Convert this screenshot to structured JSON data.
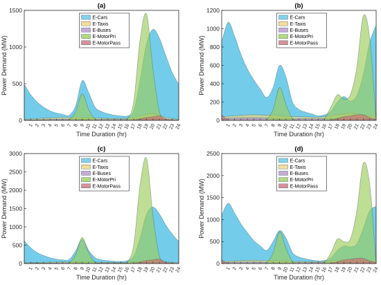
{
  "colors": {
    "E-Cars": "#5bc4e6",
    "E-Taxis": "#f0d27a",
    "E-Buses": "#b58ec8",
    "E-MotorPri": "#9bcc5a",
    "E-MotorPass": "#c96b78"
  },
  "chart_data": [
    {
      "type": "area",
      "title": "(a)",
      "xlabel": "Time Duration (hr)",
      "ylabel": "Power Demand (MW)",
      "ylim": [
        0,
        1500
      ],
      "yticks": [
        0,
        500,
        1000,
        1500
      ],
      "xlim": [
        0,
        24
      ],
      "x": [
        0,
        1,
        2,
        3,
        4,
        5,
        6,
        7,
        8,
        9,
        10,
        11,
        12,
        13,
        14,
        15,
        16,
        17,
        18,
        19,
        20,
        21,
        22,
        23,
        24
      ],
      "xticks": [
        "1",
        "2",
        "3",
        "4",
        "5",
        "6",
        "7",
        "8",
        "9",
        "10",
        "11",
        "12",
        "13",
        "14",
        "15",
        "16",
        "17",
        "18",
        "19",
        "20",
        "21",
        "22",
        "23",
        "24"
      ],
      "legend": "top-center",
      "series": [
        {
          "name": "E-Cars",
          "values": [
            490,
            350,
            250,
            180,
            130,
            100,
            80,
            70,
            200,
            540,
            380,
            180,
            120,
            90,
            70,
            60,
            60,
            130,
            550,
            1050,
            1240,
            1120,
            880,
            650,
            490
          ]
        },
        {
          "name": "E-Taxis",
          "values": [
            15,
            20,
            25,
            30,
            35,
            38,
            40,
            40,
            40,
            38,
            35,
            33,
            30,
            28,
            26,
            25,
            30,
            40,
            60,
            80,
            90,
            70,
            40,
            25,
            15
          ]
        },
        {
          "name": "E-Buses",
          "values": [
            5,
            6,
            8,
            10,
            12,
            14,
            16,
            18,
            18,
            16,
            14,
            12,
            12,
            12,
            12,
            12,
            14,
            18,
            24,
            30,
            28,
            20,
            12,
            8,
            5
          ]
        },
        {
          "name": "E-MotorPri",
          "values": [
            0,
            0,
            0,
            0,
            0,
            0,
            0,
            10,
            120,
            360,
            150,
            20,
            0,
            0,
            0,
            0,
            15,
            250,
            1100,
            1450,
            700,
            120,
            0,
            0,
            0
          ]
        },
        {
          "name": "E-MotorPass",
          "values": [
            0,
            0,
            0,
            0,
            0,
            0,
            0,
            0,
            2,
            4,
            2,
            0,
            0,
            0,
            0,
            0,
            0,
            4,
            20,
            40,
            50,
            60,
            20,
            5,
            0
          ]
        }
      ]
    },
    {
      "type": "area",
      "title": "(b)",
      "xlabel": "Time Duration (hr)",
      "ylabel": "Power Demand (MW)",
      "ylim": [
        0,
        1200
      ],
      "yticks": [
        0,
        200,
        400,
        600,
        800,
        1000,
        1200
      ],
      "xlim": [
        0,
        24
      ],
      "x": [
        0,
        1,
        2,
        3,
        4,
        5,
        6,
        7,
        8,
        9,
        10,
        11,
        12,
        13,
        14,
        15,
        16,
        17,
        18,
        19,
        20,
        21,
        22,
        23,
        24
      ],
      "xticks": [
        "1",
        "2",
        "3",
        "4",
        "5",
        "6",
        "7",
        "8",
        "9",
        "10",
        "11",
        "12",
        "13",
        "14",
        "15",
        "16",
        "17",
        "18",
        "19",
        "20",
        "21",
        "22",
        "23",
        "24"
      ],
      "legend": "top-center",
      "series": [
        {
          "name": "E-Cars",
          "values": [
            850,
            1070,
            920,
            720,
            560,
            440,
            340,
            250,
            360,
            600,
            470,
            200,
            120,
            90,
            70,
            50,
            60,
            100,
            200,
            260,
            210,
            270,
            500,
            850,
            1040
          ]
        },
        {
          "name": "E-Taxis",
          "values": [
            40,
            45,
            50,
            55,
            60,
            62,
            60,
            58,
            55,
            50,
            45,
            42,
            40,
            38,
            36,
            35,
            40,
            50,
            60,
            70,
            80,
            70,
            60,
            50,
            40
          ]
        },
        {
          "name": "E-Buses",
          "values": [
            20,
            22,
            24,
            26,
            28,
            28,
            26,
            24,
            22,
            20,
            18,
            18,
            18,
            18,
            18,
            18,
            20,
            22,
            26,
            30,
            28,
            26,
            24,
            22,
            20
          ]
        },
        {
          "name": "E-MotorPri",
          "values": [
            0,
            0,
            0,
            0,
            0,
            0,
            0,
            10,
            120,
            360,
            170,
            20,
            0,
            0,
            0,
            0,
            20,
            150,
            280,
            230,
            280,
            580,
            1140,
            900,
            0
          ]
        },
        {
          "name": "E-MotorPass",
          "values": [
            60,
            0,
            0,
            0,
            0,
            0,
            0,
            0,
            2,
            4,
            2,
            0,
            0,
            0,
            0,
            0,
            0,
            4,
            20,
            40,
            50,
            60,
            60,
            30,
            10
          ]
        }
      ]
    },
    {
      "type": "area",
      "title": "(c)",
      "xlabel": "Time Duration (hr)",
      "ylabel": "Power Demand (MW)",
      "ylim": [
        0,
        3000
      ],
      "yticks": [
        0,
        500,
        1000,
        1500,
        2000,
        2500,
        3000
      ],
      "xlim": [
        0,
        24
      ],
      "x": [
        0,
        1,
        2,
        3,
        4,
        5,
        6,
        7,
        8,
        9,
        10,
        11,
        12,
        13,
        14,
        15,
        16,
        17,
        18,
        19,
        20,
        21,
        22,
        23,
        24
      ],
      "xticks": [
        "1",
        "2",
        "3",
        "4",
        "5",
        "6",
        "7",
        "8",
        "9",
        "10",
        "11",
        "12",
        "13",
        "14",
        "15",
        "16",
        "17",
        "18",
        "19",
        "20",
        "21",
        "22",
        "23",
        "24"
      ],
      "legend": "top-center",
      "series": [
        {
          "name": "E-Cars",
          "values": [
            620,
            430,
            300,
            220,
            160,
            120,
            100,
            110,
            350,
            660,
            360,
            160,
            100,
            80,
            60,
            60,
            80,
            200,
            700,
            1350,
            1540,
            1350,
            1050,
            800,
            600
          ]
        },
        {
          "name": "E-Taxis",
          "values": [
            20,
            25,
            30,
            35,
            40,
            42,
            45,
            45,
            45,
            42,
            40,
            38,
            35,
            33,
            30,
            30,
            35,
            45,
            70,
            90,
            100,
            80,
            50,
            30,
            20
          ]
        },
        {
          "name": "E-Buses",
          "values": [
            8,
            10,
            12,
            14,
            16,
            18,
            20,
            22,
            22,
            20,
            18,
            16,
            16,
            16,
            16,
            16,
            18,
            22,
            30,
            36,
            34,
            24,
            16,
            10,
            8
          ]
        },
        {
          "name": "E-MotorPri",
          "values": [
            0,
            0,
            0,
            0,
            0,
            0,
            0,
            20,
            250,
            710,
            300,
            40,
            0,
            0,
            0,
            0,
            30,
            500,
            2150,
            2870,
            1300,
            200,
            0,
            0,
            0
          ]
        },
        {
          "name": "E-MotorPass",
          "values": [
            0,
            0,
            0,
            0,
            0,
            0,
            0,
            0,
            4,
            8,
            4,
            0,
            0,
            0,
            0,
            0,
            0,
            8,
            40,
            80,
            100,
            120,
            40,
            10,
            0
          ]
        }
      ]
    },
    {
      "type": "area",
      "title": "(d)",
      "xlabel": "Time Duration (hr)",
      "ylabel": "Power Demand (MW)",
      "ylim": [
        0,
        2500
      ],
      "yticks": [
        0,
        500,
        1000,
        1500,
        2000,
        2500
      ],
      "xlim": [
        0,
        24
      ],
      "x": [
        0,
        1,
        2,
        3,
        4,
        5,
        6,
        7,
        8,
        9,
        10,
        11,
        12,
        13,
        14,
        15,
        16,
        17,
        18,
        19,
        20,
        21,
        22,
        23,
        24
      ],
      "xticks": [
        "1",
        "2",
        "3",
        "4",
        "5",
        "6",
        "7",
        "8",
        "9",
        "10",
        "11",
        "12",
        "13",
        "14",
        "15",
        "16",
        "17",
        "18",
        "19",
        "20",
        "21",
        "22",
        "23",
        "24"
      ],
      "legend": "top-center",
      "series": [
        {
          "name": "E-Cars",
          "values": [
            1100,
            1370,
            1150,
            900,
            700,
            520,
            400,
            300,
            500,
            750,
            580,
            250,
            150,
            110,
            80,
            60,
            70,
            130,
            300,
            400,
            380,
            450,
            800,
            1200,
            1300
          ]
        },
        {
          "name": "E-Taxis",
          "values": [
            50,
            55,
            60,
            66,
            72,
            75,
            72,
            70,
            66,
            60,
            55,
            50,
            48,
            46,
            44,
            42,
            48,
            60,
            72,
            84,
            96,
            84,
            72,
            60,
            50
          ]
        },
        {
          "name": "E-Buses",
          "values": [
            25,
            27,
            30,
            32,
            34,
            34,
            32,
            30,
            28,
            25,
            22,
            22,
            22,
            22,
            22,
            22,
            25,
            27,
            32,
            36,
            34,
            32,
            30,
            27,
            25
          ]
        },
        {
          "name": "E-MotorPri",
          "values": [
            0,
            0,
            0,
            0,
            0,
            0,
            0,
            15,
            250,
            720,
            350,
            40,
            0,
            0,
            0,
            0,
            30,
            250,
            560,
            500,
            560,
            1200,
            2280,
            1800,
            0
          ]
        },
        {
          "name": "E-MotorPass",
          "values": [
            80,
            0,
            0,
            0,
            0,
            0,
            0,
            0,
            4,
            8,
            4,
            0,
            0,
            0,
            0,
            0,
            0,
            8,
            40,
            80,
            100,
            120,
            120,
            60,
            20
          ]
        }
      ]
    }
  ]
}
